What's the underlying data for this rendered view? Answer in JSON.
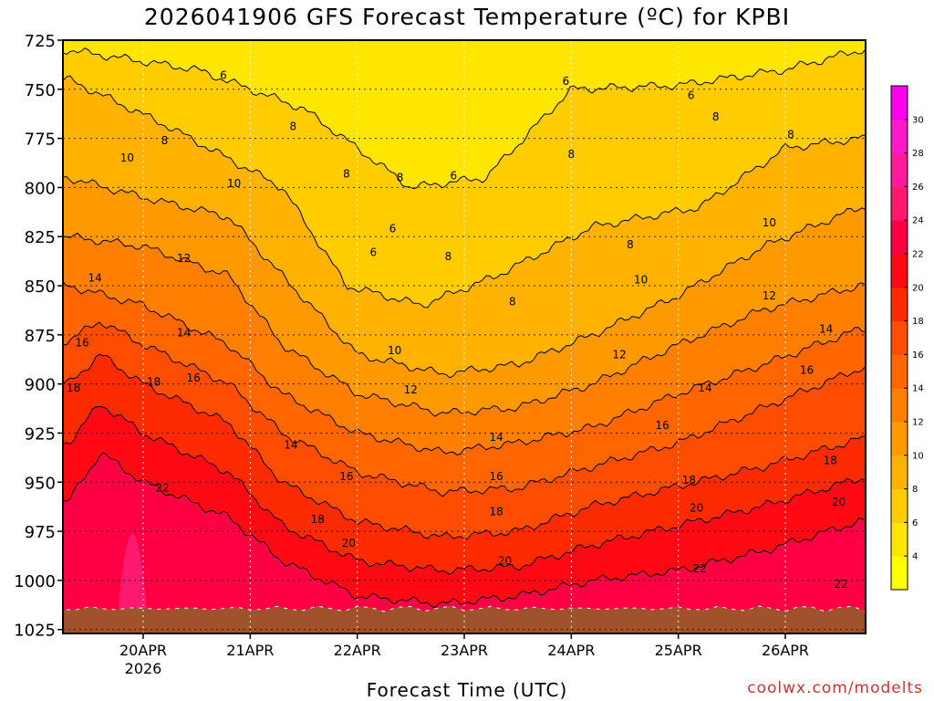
{
  "chart_data": {
    "type": "heatmap",
    "title": "2026041906 GFS Forecast Temperature (ºC) for KPBI",
    "xlabel": "Forecast Time (UTC)",
    "ylabel": "",
    "credit": "coolwx.com/modelts",
    "x_ticks": [
      "20APR",
      "21APR",
      "22APR",
      "23APR",
      "24APR",
      "25APR",
      "26APR"
    ],
    "x_year": "2026",
    "x_range_days": [
      19.25,
      26.75
    ],
    "y_ticks": [
      725,
      750,
      775,
      800,
      825,
      850,
      875,
      900,
      925,
      950,
      975,
      1000,
      1025
    ],
    "y_range": [
      725,
      1027
    ],
    "colorbar": {
      "levels": [
        4,
        6,
        8,
        10,
        12,
        14,
        16,
        18,
        20,
        22,
        24,
        26,
        28,
        30
      ],
      "colors": [
        "#ffff00",
        "#ffe600",
        "#ffcc00",
        "#ffb300",
        "#ff9900",
        "#ff8000",
        "#ff6600",
        "#ff4d00",
        "#ff2b00",
        "#ff0a14",
        "#ff0044",
        "#ff1a70",
        "#ff1a99",
        "#ff1ac8",
        "#ff00ee"
      ]
    },
    "contours": [
      {
        "level": 6,
        "pressure_by_day": [
          [
            19.3,
            730
          ],
          [
            20.5,
            740
          ],
          [
            21.5,
            760
          ],
          [
            22.5,
            800
          ],
          [
            23.2,
            795
          ],
          [
            24.0,
            750
          ],
          [
            25.0,
            748
          ],
          [
            26.0,
            740
          ],
          [
            26.7,
            730
          ]
        ]
      },
      {
        "level": 8,
        "pressure_by_day": [
          [
            19.3,
            745
          ],
          [
            20.2,
            768
          ],
          [
            21.3,
            800
          ],
          [
            21.9,
            850
          ],
          [
            22.6,
            860
          ],
          [
            23.3,
            845
          ],
          [
            24.2,
            820
          ],
          [
            25.2,
            810
          ],
          [
            26.0,
            780
          ],
          [
            26.7,
            775
          ]
        ]
      },
      {
        "level": 10,
        "pressure_by_day": [
          [
            19.3,
            795
          ],
          [
            20.0,
            805
          ],
          [
            20.8,
            815
          ],
          [
            21.3,
            845
          ],
          [
            22.0,
            885
          ],
          [
            22.8,
            895
          ],
          [
            23.5,
            890
          ],
          [
            24.2,
            875
          ],
          [
            25.0,
            855
          ],
          [
            25.8,
            830
          ],
          [
            26.7,
            810
          ]
        ]
      },
      {
        "level": 12,
        "pressure_by_day": [
          [
            19.3,
            825
          ],
          [
            20.0,
            830
          ],
          [
            20.8,
            845
          ],
          [
            21.3,
            880
          ],
          [
            22.0,
            905
          ],
          [
            22.8,
            915
          ],
          [
            23.5,
            912
          ],
          [
            24.2,
            900
          ],
          [
            25.0,
            880
          ],
          [
            25.8,
            862
          ],
          [
            26.7,
            850
          ]
        ]
      },
      {
        "level": 14,
        "pressure_by_day": [
          [
            19.3,
            850
          ],
          [
            20.0,
            860
          ],
          [
            20.8,
            880
          ],
          [
            21.3,
            905
          ],
          [
            22.0,
            925
          ],
          [
            22.8,
            935
          ],
          [
            23.5,
            930
          ],
          [
            24.2,
            922
          ],
          [
            25.0,
            905
          ],
          [
            25.8,
            890
          ],
          [
            26.7,
            872
          ]
        ]
      },
      {
        "level": 16,
        "pressure_by_day": [
          [
            19.3,
            878
          ],
          [
            19.6,
            868
          ],
          [
            20.0,
            880
          ],
          [
            20.8,
            900
          ],
          [
            21.3,
            925
          ],
          [
            22.0,
            945
          ],
          [
            22.8,
            955
          ],
          [
            23.5,
            953
          ],
          [
            24.2,
            942
          ],
          [
            25.0,
            930
          ],
          [
            25.8,
            912
          ],
          [
            26.7,
            892
          ]
        ]
      },
      {
        "level": 18,
        "pressure_by_day": [
          [
            19.3,
            900
          ],
          [
            19.6,
            885
          ],
          [
            20.0,
            900
          ],
          [
            20.8,
            920
          ],
          [
            21.3,
            950
          ],
          [
            22.0,
            970
          ],
          [
            22.8,
            978
          ],
          [
            23.5,
            975
          ],
          [
            24.2,
            962
          ],
          [
            25.0,
            952
          ],
          [
            25.8,
            942
          ],
          [
            26.7,
            928
          ]
        ]
      },
      {
        "level": 20,
        "pressure_by_day": [
          [
            19.3,
            930
          ],
          [
            19.6,
            910
          ],
          [
            20.0,
            925
          ],
          [
            20.8,
            945
          ],
          [
            21.3,
            972
          ],
          [
            22.0,
            990
          ],
          [
            22.8,
            995
          ],
          [
            23.5,
            993
          ],
          [
            24.2,
            982
          ],
          [
            25.0,
            972
          ],
          [
            25.8,
            962
          ],
          [
            26.7,
            948
          ]
        ]
      },
      {
        "level": 22,
        "pressure_by_day": [
          [
            19.3,
            960
          ],
          [
            19.6,
            935
          ],
          [
            20.0,
            950
          ],
          [
            20.8,
            968
          ],
          [
            21.3,
            990
          ],
          [
            22.0,
            1008
          ],
          [
            22.8,
            1012
          ],
          [
            23.5,
            1008
          ],
          [
            24.2,
            1000
          ],
          [
            25.0,
            995
          ],
          [
            25.8,
            985
          ],
          [
            26.7,
            970
          ]
        ]
      }
    ],
    "contour_labels": [
      {
        "text": "6",
        "day": 20.75,
        "p": 743
      },
      {
        "text": "6",
        "day": 22.33,
        "p": 821
      },
      {
        "text": "6",
        "day": 22.15,
        "p": 833
      },
      {
        "text": "6",
        "day": 22.9,
        "p": 794
      },
      {
        "text": "6",
        "day": 23.95,
        "p": 746
      },
      {
        "text": "6",
        "day": 25.12,
        "p": 753
      },
      {
        "text": "8",
        "day": 20.2,
        "p": 776
      },
      {
        "text": "8",
        "day": 21.4,
        "p": 769
      },
      {
        "text": "8",
        "day": 21.9,
        "p": 793
      },
      {
        "text": "8",
        "day": 22.4,
        "p": 795
      },
      {
        "text": "8",
        "day": 22.85,
        "p": 835
      },
      {
        "text": "8",
        "day": 23.45,
        "p": 858
      },
      {
        "text": "8",
        "day": 24.0,
        "p": 783
      },
      {
        "text": "8",
        "day": 24.55,
        "p": 829
      },
      {
        "text": "8",
        "day": 25.35,
        "p": 764
      },
      {
        "text": "8",
        "day": 26.05,
        "p": 773
      },
      {
        "text": "10",
        "day": 19.85,
        "p": 785
      },
      {
        "text": "10",
        "day": 20.85,
        "p": 798
      },
      {
        "text": "10",
        "day": 22.35,
        "p": 883
      },
      {
        "text": "10",
        "day": 24.65,
        "p": 847
      },
      {
        "text": "10",
        "day": 25.85,
        "p": 818
      },
      {
        "text": "12",
        "day": 20.38,
        "p": 836
      },
      {
        "text": "12",
        "day": 22.5,
        "p": 903
      },
      {
        "text": "12",
        "day": 24.45,
        "p": 885
      },
      {
        "text": "12",
        "day": 25.85,
        "p": 855
      },
      {
        "text": "14",
        "day": 19.55,
        "p": 846
      },
      {
        "text": "14",
        "day": 20.38,
        "p": 874
      },
      {
        "text": "14",
        "day": 21.38,
        "p": 931
      },
      {
        "text": "14",
        "day": 23.3,
        "p": 927
      },
      {
        "text": "14",
        "day": 25.25,
        "p": 902
      },
      {
        "text": "14",
        "day": 26.38,
        "p": 872
      },
      {
        "text": "16",
        "day": 19.43,
        "p": 879
      },
      {
        "text": "16",
        "day": 20.47,
        "p": 897
      },
      {
        "text": "16",
        "day": 21.9,
        "p": 947
      },
      {
        "text": "16",
        "day": 23.3,
        "p": 947
      },
      {
        "text": "16",
        "day": 24.85,
        "p": 921
      },
      {
        "text": "16",
        "day": 26.2,
        "p": 893
      },
      {
        "text": "18",
        "day": 19.35,
        "p": 902
      },
      {
        "text": "18",
        "day": 20.1,
        "p": 899
      },
      {
        "text": "18",
        "day": 21.63,
        "p": 969
      },
      {
        "text": "18",
        "day": 23.3,
        "p": 965
      },
      {
        "text": "18",
        "day": 25.1,
        "p": 949
      },
      {
        "text": "18",
        "day": 26.42,
        "p": 939
      },
      {
        "text": "20",
        "day": 21.92,
        "p": 981
      },
      {
        "text": "20",
        "day": 23.38,
        "p": 990
      },
      {
        "text": "20",
        "day": 25.17,
        "p": 963
      },
      {
        "text": "20",
        "day": 26.5,
        "p": 960
      },
      {
        "text": "22",
        "day": 20.18,
        "p": 953
      },
      {
        "text": "22",
        "day": 25.2,
        "p": 994
      },
      {
        "text": "22",
        "day": 26.52,
        "p": 1002
      }
    ],
    "ground": {
      "surface_pressure": 1014
    }
  }
}
